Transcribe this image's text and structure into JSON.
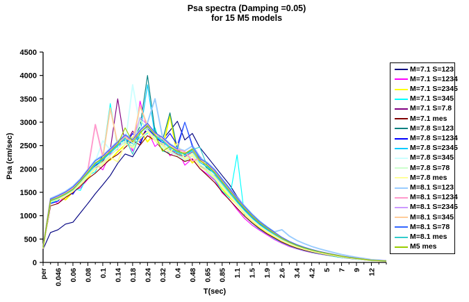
{
  "title": {
    "line1": "Psa spectra  (Damping =0.05)",
    "line2": "for 15  M5 models"
  },
  "chart_data": {
    "type": "line",
    "title": "Psa spectra  (Damping =0.05) for 15  M5 models",
    "xlabel": "T(sec)",
    "ylabel": "Psa (cm/sec)",
    "ylim": [
      0,
      4500
    ],
    "ytick_step": 500,
    "grid": false,
    "legend_position": "right",
    "x_tick_labels": [
      "per",
      "0.046",
      "0.06",
      "0.08",
      "0.1",
      "0.14",
      "0.18",
      "0.24",
      "0.32",
      "0.4",
      "0.48",
      "0.65",
      "0.85",
      "1.1",
      "1.5",
      "1.9",
      "2.6",
      "3.4",
      "4.2",
      "5",
      "7",
      "9",
      "12"
    ],
    "x_ticks_between_labels": 1,
    "series": [
      {
        "name": "M=7.1 S=123",
        "color": "#000080",
        "values": [
          280,
          640,
          700,
          820,
          860,
          1060,
          1260,
          1470,
          1660,
          1860,
          2120,
          2320,
          2260,
          2520,
          2920,
          2720,
          2620,
          2820,
          3020,
          2620,
          2760,
          2460,
          2260,
          2060,
          1860,
          1660,
          1410,
          1210,
          1030,
          880,
          760,
          640,
          530,
          440,
          370,
          315,
          265,
          225,
          190,
          160,
          130,
          105,
          85,
          65,
          45,
          38,
          30
        ]
      },
      {
        "name": "M=7.1 S=1234",
        "color": "#FF00FF",
        "values": [
          310,
          1360,
          1260,
          1440,
          1560,
          1590,
          1780,
          2120,
          1980,
          2320,
          2420,
          2720,
          2380,
          3450,
          2820,
          2480,
          2620,
          2280,
          2420,
          2080,
          2220,
          2010,
          1890,
          1760,
          1490,
          1340,
          1130,
          940,
          800,
          690,
          590,
          490,
          410,
          340,
          290,
          245,
          210,
          180,
          155,
          130,
          105,
          85,
          68,
          52,
          38,
          32,
          26
        ]
      },
      {
        "name": "M=7.1 S=2345",
        "color": "#FFFF00",
        "values": [
          300,
          1310,
          1420,
          1340,
          1510,
          1720,
          1790,
          2060,
          2170,
          2190,
          2370,
          2520,
          2670,
          2820,
          2580,
          2770,
          2430,
          3150,
          2280,
          2360,
          2130,
          2260,
          2030,
          1790,
          1580,
          1390,
          1240,
          1040,
          890,
          755,
          645,
          550,
          460,
          385,
          325,
          275,
          235,
          200,
          172,
          143,
          117,
          94,
          76,
          58,
          41,
          34,
          28
        ]
      },
      {
        "name": "M=7.1 S=345",
        "color": "#00FFFF",
        "values": [
          295,
          1270,
          1340,
          1460,
          1590,
          1540,
          1860,
          1940,
          2260,
          3400,
          2440,
          2580,
          2480,
          2680,
          2760,
          2880,
          2380,
          2340,
          2480,
          2180,
          2280,
          2080,
          1930,
          1780,
          1530,
          1380,
          2300,
          990,
          840,
          710,
          610,
          510,
          425,
          355,
          298,
          252,
          216,
          185,
          158,
          128,
          104,
          84,
          67,
          51,
          37,
          31,
          25
        ]
      },
      {
        "name": "M=7.1 S=7.8",
        "color": "#800080",
        "values": [
          305,
          1330,
          1390,
          1430,
          1530,
          1690,
          1910,
          2010,
          2160,
          2410,
          3500,
          2510,
          2810,
          2610,
          2910,
          2710,
          2510,
          2410,
          2310,
          2260,
          2360,
          2060,
          1960,
          1860,
          1660,
          1460,
          1260,
          1090,
          930,
          790,
          680,
          575,
          475,
          400,
          338,
          287,
          246,
          210,
          180,
          150,
          122,
          98,
          80,
          62,
          44,
          37,
          30
        ]
      },
      {
        "name": "M=7.1 mes",
        "color": "#800000",
        "values": [
          290,
          1210,
          1260,
          1390,
          1490,
          1630,
          1790,
          1910,
          2060,
          2210,
          2310,
          2460,
          2610,
          2510,
          2710,
          2610,
          2410,
          2310,
          2260,
          2160,
          2210,
          2010,
          1860,
          1710,
          1510,
          1330,
          1160,
          990,
          850,
          725,
          615,
          525,
          435,
          365,
          308,
          262,
          224,
          192,
          164,
          137,
          111,
          89,
          71,
          55,
          39,
          33,
          27
        ]
      },
      {
        "name": "M=7.8 S=123",
        "color": "#008080",
        "values": [
          335,
          1350,
          1430,
          1510,
          1610,
          1760,
          1960,
          2110,
          2260,
          2360,
          2560,
          2710,
          2610,
          2910,
          4000,
          2810,
          2610,
          3200,
          2410,
          2310,
          2410,
          2210,
          2010,
          1910,
          1710,
          1530,
          1310,
          1130,
          970,
          825,
          705,
          600,
          500,
          420,
          356,
          302,
          259,
          222,
          189,
          158,
          129,
          103,
          83,
          64,
          46,
          39,
          31
        ]
      },
      {
        "name": "M=7.8 S=1234",
        "color": "#0000FF",
        "values": [
          315,
          1260,
          1310,
          1510,
          1460,
          1710,
          1960,
          2060,
          2210,
          2360,
          2610,
          2510,
          2760,
          2560,
          2860,
          2700,
          2550,
          2760,
          2510,
          3000,
          2510,
          2260,
          2110,
          1960,
          1760,
          1560,
          1330,
          1140,
          970,
          830,
          710,
          605,
          495,
          418,
          353,
          300,
          257,
          220,
          187,
          158,
          129,
          104,
          85,
          66,
          46,
          38,
          31
        ]
      },
      {
        "name": "M=7.8 S=2345",
        "color": "#00CCFF",
        "values": [
          320,
          1300,
          1370,
          1450,
          1570,
          1730,
          1890,
          2090,
          2190,
          2340,
          2490,
          2640,
          2540,
          2740,
          3800,
          2690,
          2590,
          2440,
          2340,
          2290,
          2390,
          2140,
          2040,
          1890,
          1690,
          1490,
          1290,
          1110,
          950,
          810,
          695,
          590,
          490,
          412,
          348,
          295,
          252,
          215,
          184,
          154,
          125,
          101,
          81,
          63,
          45,
          38,
          30
        ]
      },
      {
        "name": "M=7.8 S=345",
        "color": "#CCFFFF",
        "values": [
          300,
          1340,
          1410,
          1490,
          1590,
          1760,
          1960,
          2160,
          2600,
          2410,
          2610,
          2510,
          3800,
          2910,
          2810,
          2610,
          2460,
          2360,
          2290,
          2190,
          2290,
          2090,
          1990,
          1840,
          1640,
          1440,
          1250,
          1070,
          915,
          780,
          670,
          570,
          475,
          398,
          337,
          287,
          245,
          209,
          178,
          149,
          121,
          98,
          79,
          61,
          43,
          36,
          29
        ]
      },
      {
        "name": "M=7.8 S=78",
        "color": "#CCFFCC",
        "values": [
          310,
          1320,
          1380,
          1440,
          1550,
          1700,
          1870,
          2040,
          2140,
          2290,
          2440,
          2590,
          2490,
          3050,
          2840,
          2640,
          2540,
          2390,
          2290,
          2240,
          2340,
          2090,
          1990,
          1840,
          1650,
          1450,
          1260,
          1080,
          920,
          785,
          672,
          572,
          474,
          399,
          337,
          287,
          246,
          210,
          179,
          150,
          122,
          99,
          80,
          62,
          44,
          37,
          30
        ]
      },
      {
        "name": "M=7.8 mes",
        "color": "#FFFF99",
        "values": [
          295,
          1300,
          1350,
          1420,
          1520,
          1670,
          1840,
          2000,
          2100,
          2250,
          2150,
          2550,
          2450,
          2650,
          2800,
          2600,
          2500,
          2350,
          2550,
          2200,
          2300,
          2050,
          1950,
          1800,
          1610,
          1420,
          1230,
          1050,
          895,
          765,
          652,
          557,
          462,
          389,
          329,
          280,
          240,
          205,
          175,
          147,
          120,
          97,
          78,
          60,
          42,
          35,
          29
        ]
      },
      {
        "name": "M=8.1 S=123",
        "color": "#99CCFF",
        "values": [
          330,
          1370,
          1440,
          1520,
          1630,
          1790,
          1990,
          2190,
          2290,
          2440,
          2590,
          2740,
          2640,
          2840,
          2990,
          3500,
          2690,
          2540,
          2440,
          2390,
          2490,
          2240,
          2140,
          1990,
          1790,
          1590,
          1390,
          1210,
          1040,
          890,
          765,
          655,
          700,
          565,
          472,
          402,
          342,
          292,
          249,
          209,
          171,
          138,
          111,
          86,
          61,
          50,
          40
        ]
      },
      {
        "name": "M=8.1 S=1234",
        "color": "#FF99CC",
        "values": [
          325,
          1350,
          1420,
          1500,
          1600,
          1770,
          1970,
          2950,
          2270,
          2420,
          2570,
          2720,
          2620,
          2820,
          2970,
          2770,
          2670,
          2520,
          2420,
          2370,
          2170,
          2220,
          2120,
          1970,
          1770,
          1570,
          1370,
          1190,
          1015,
          870,
          748,
          638,
          528,
          444,
          375,
          318,
          272,
          232,
          198,
          166,
          135,
          109,
          88,
          68,
          48,
          40,
          32
        ]
      },
      {
        "name": "M=8.1 S=2345",
        "color": "#CC99FF",
        "values": [
          315,
          1335,
          1395,
          1475,
          1575,
          1745,
          1935,
          2135,
          2235,
          2385,
          2535,
          2685,
          2585,
          3100,
          2935,
          2735,
          2635,
          2485,
          2385,
          2335,
          2435,
          2185,
          2085,
          1935,
          1735,
          1535,
          1345,
          1165,
          995,
          852,
          732,
          622,
          517,
          435,
          367,
          312,
          267,
          228,
          194,
          163,
          133,
          107,
          86,
          67,
          47,
          39,
          31
        ]
      },
      {
        "name": "M=8.1 S=345",
        "color": "#FFCC99",
        "values": [
          305,
          1325,
          1385,
          1465,
          1565,
          1735,
          1925,
          2125,
          2225,
          3300,
          2525,
          2675,
          2575,
          3350,
          2925,
          2725,
          2625,
          2475,
          2375,
          2325,
          2425,
          2175,
          2075,
          1925,
          1725,
          1525,
          1335,
          1155,
          988,
          846,
          727,
          617,
          512,
          431,
          364,
          309,
          265,
          226,
          193,
          162,
          132,
          106,
          85,
          66,
          46,
          38,
          31
        ]
      },
      {
        "name": "M=8.1 S=78",
        "color": "#3366FF",
        "values": [
          328,
          1355,
          1425,
          1505,
          1615,
          1775,
          1975,
          2175,
          2275,
          2425,
          2575,
          2725,
          2625,
          2825,
          2975,
          2775,
          2675,
          2525,
          2425,
          3000,
          2475,
          2225,
          2125,
          1975,
          1775,
          1575,
          1375,
          1195,
          1025,
          878,
          758,
          648,
          538,
          452,
          382,
          325,
          278,
          238,
          202,
          169,
          138,
          111,
          90,
          70,
          49,
          41,
          33
        ]
      },
      {
        "name": "M=8.1 mes",
        "color": "#33CCCC",
        "values": [
          312,
          1315,
          1375,
          1455,
          1555,
          1725,
          1915,
          2115,
          2215,
          2365,
          2515,
          2665,
          2315,
          2765,
          2915,
          2715,
          2615,
          2465,
          2365,
          2315,
          2415,
          2465,
          2065,
          1915,
          1715,
          1515,
          1325,
          1145,
          978,
          838,
          718,
          610,
          507,
          427,
          360,
          306,
          262,
          224,
          191,
          160,
          131,
          105,
          84,
          65,
          45,
          38,
          30
        ]
      },
      {
        "name": "M5 mes",
        "color": "#99CC00",
        "values": [
          318,
          1328,
          1388,
          1468,
          1568,
          1738,
          1928,
          2128,
          2228,
          2378,
          2528,
          2880,
          2578,
          2778,
          2928,
          2728,
          2380,
          2478,
          2378,
          2328,
          2428,
          2178,
          2078,
          1928,
          1728,
          1528,
          1338,
          1158,
          992,
          850,
          730,
          620,
          514,
          433,
          366,
          311,
          266,
          227,
          194,
          163,
          133,
          107,
          86,
          67,
          47,
          39,
          31
        ]
      }
    ]
  }
}
